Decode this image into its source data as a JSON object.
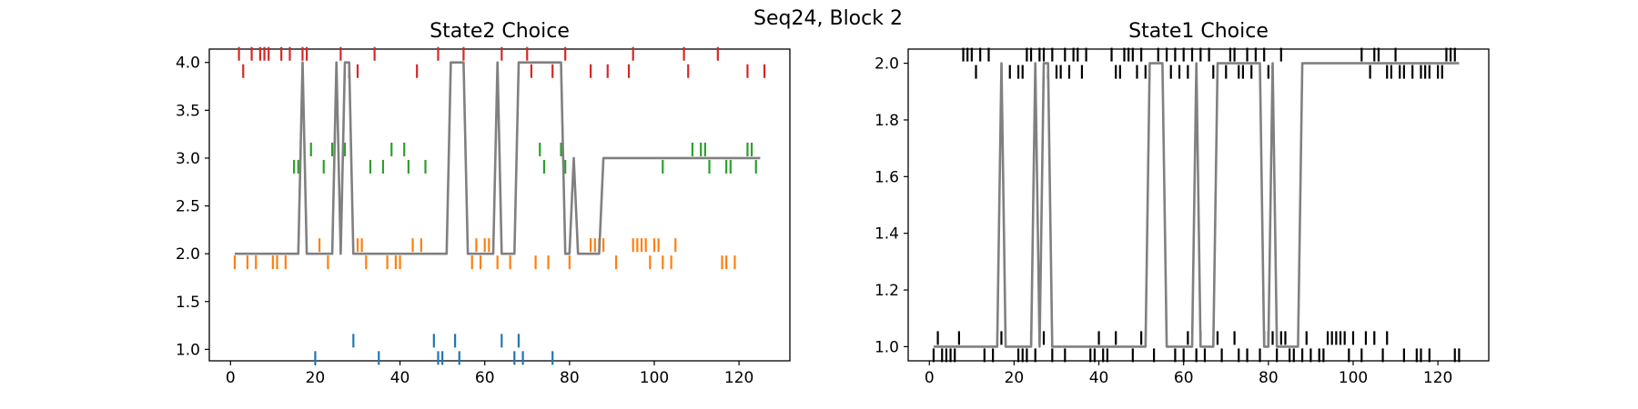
{
  "suptitle": "Seq24, Block 2",
  "chart_data": [
    {
      "type": "line",
      "title": "State2 Choice",
      "xlim": [
        -5,
        132
      ],
      "ylim": [
        0.88,
        4.14
      ],
      "xticks": [
        0,
        20,
        40,
        60,
        80,
        100,
        120
      ],
      "xtick_labels": [
        "0",
        "20",
        "40",
        "60",
        "80",
        "100",
        "120"
      ],
      "yticks": [
        1.0,
        1.5,
        2.0,
        2.5,
        3.0,
        3.5,
        4.0
      ],
      "ytick_labels": [
        "1.0",
        "1.5",
        "2.0",
        "2.5",
        "3.0",
        "3.5",
        "4.0"
      ],
      "grid": false,
      "line": {
        "color": "#808080",
        "x": [
          1,
          16,
          17,
          18,
          24,
          25,
          26,
          27,
          28,
          29,
          51,
          52,
          55,
          56,
          62,
          63,
          64,
          67,
          68,
          78,
          79,
          80,
          81,
          82,
          87,
          88,
          125
        ],
        "y": [
          2,
          2,
          4,
          2,
          2,
          4,
          2,
          4,
          4,
          2,
          2,
          4,
          4,
          2,
          2,
          4,
          2,
          2,
          4,
          4,
          2,
          2,
          3,
          2,
          2,
          3,
          3
        ]
      },
      "events": [
        {
          "level": 1,
          "color": "#1f77b4",
          "x": [
            20,
            29,
            35,
            48,
            49,
            50,
            53,
            54,
            64,
            67,
            68,
            69,
            76
          ],
          "up": [
            false,
            true,
            false,
            true,
            false,
            false,
            true,
            false,
            true,
            false,
            true,
            false,
            false
          ]
        },
        {
          "level": 2,
          "color": "#ff7f0e",
          "x": [
            1,
            4,
            6,
            10,
            11,
            13,
            21,
            23,
            30,
            31,
            32,
            37,
            39,
            40,
            43,
            45,
            57,
            58,
            59,
            60,
            61,
            63,
            66,
            72,
            75,
            80,
            85,
            86,
            87,
            88,
            91,
            95,
            96,
            97,
            98,
            99,
            100,
            101,
            102,
            104,
            105,
            116,
            117,
            119
          ],
          "up": [
            false,
            false,
            false,
            false,
            false,
            false,
            true,
            false,
            true,
            true,
            false,
            false,
            false,
            false,
            true,
            true,
            false,
            true,
            false,
            true,
            true,
            false,
            false,
            false,
            false,
            false,
            true,
            true,
            true,
            true,
            false,
            true,
            true,
            true,
            true,
            false,
            true,
            true,
            false,
            false,
            true,
            false,
            false,
            false
          ]
        },
        {
          "level": 3,
          "color": "#2ca02c",
          "x": [
            15,
            16,
            19,
            22,
            24,
            27,
            33,
            36,
            38,
            41,
            42,
            46,
            73,
            74,
            78,
            79,
            102,
            109,
            111,
            112,
            113,
            117,
            118,
            122,
            123,
            124
          ],
          "up": [
            false,
            false,
            true,
            false,
            true,
            true,
            false,
            false,
            true,
            true,
            false,
            false,
            true,
            false,
            true,
            false,
            false,
            true,
            true,
            true,
            false,
            false,
            false,
            true,
            true,
            false
          ]
        },
        {
          "level": 4,
          "color": "#d62728",
          "x": [
            2,
            3,
            5,
            7,
            8,
            9,
            12,
            14,
            17,
            18,
            25,
            26,
            28,
            30,
            34,
            44,
            49,
            55,
            64,
            70,
            71,
            76,
            79,
            85,
            89,
            94,
            95,
            107,
            108,
            115,
            122,
            126
          ],
          "up": [
            true,
            false,
            true,
            true,
            true,
            true,
            true,
            true,
            true,
            true,
            false,
            true,
            false,
            false,
            true,
            false,
            true,
            true,
            true,
            true,
            false,
            false,
            true,
            false,
            false,
            false,
            true,
            true,
            false,
            true,
            false,
            false
          ]
        }
      ]
    },
    {
      "type": "line",
      "title": "State1 Choice",
      "xlim": [
        -5,
        132
      ],
      "ylim": [
        0.95,
        2.05
      ],
      "xticks": [
        0,
        20,
        40,
        60,
        80,
        100,
        120
      ],
      "xtick_labels": [
        "0",
        "20",
        "40",
        "60",
        "80",
        "100",
        "120"
      ],
      "yticks": [
        1.0,
        1.2,
        1.4,
        1.6,
        1.8,
        2.0
      ],
      "ytick_labels": [
        "1.0",
        "1.2",
        "1.4",
        "1.6",
        "1.8",
        "2.0"
      ],
      "grid": false,
      "line": {
        "color": "#808080",
        "x": [
          1,
          16,
          17,
          18,
          24,
          25,
          26,
          27,
          28,
          29,
          51,
          52,
          55,
          56,
          62,
          63,
          64,
          67,
          68,
          78,
          79,
          80,
          81,
          82,
          87,
          88,
          125
        ],
        "y": [
          1,
          1,
          2,
          1,
          1,
          2,
          1,
          2,
          2,
          1,
          1,
          2,
          2,
          1,
          1,
          2,
          1,
          1,
          2,
          2,
          1,
          1,
          2,
          1,
          1,
          2,
          2
        ]
      },
      "events": [
        {
          "level": 1,
          "color": "#000000",
          "x": [
            1,
            2,
            3,
            4,
            5,
            6,
            7,
            13,
            15,
            17,
            21,
            22,
            23,
            24,
            25,
            27,
            29,
            32,
            38,
            39,
            40,
            41,
            42,
            44,
            48,
            50,
            53,
            58,
            60,
            61,
            63,
            64,
            65,
            68,
            69,
            72,
            73,
            75,
            78,
            79,
            80,
            81,
            82,
            83,
            84,
            85,
            86,
            88,
            89,
            90,
            92,
            93,
            94,
            95,
            96,
            97,
            98,
            99,
            100,
            102,
            103,
            105,
            107,
            108,
            112,
            115,
            116,
            118,
            124,
            125
          ],
          "up": [
            false,
            true,
            false,
            false,
            false,
            false,
            true,
            false,
            false,
            true,
            false,
            false,
            false,
            true,
            false,
            true,
            false,
            false,
            false,
            false,
            true,
            false,
            false,
            true,
            false,
            true,
            false,
            false,
            false,
            true,
            false,
            true,
            false,
            true,
            false,
            true,
            false,
            false,
            false,
            true,
            true,
            true,
            false,
            true,
            true,
            false,
            false,
            false,
            true,
            false,
            false,
            false,
            true,
            true,
            true,
            true,
            true,
            false,
            true,
            false,
            true,
            true,
            false,
            true,
            false,
            false,
            false,
            false,
            false,
            false
          ]
        },
        {
          "level": 2,
          "color": "#000000",
          "x": [
            8,
            9,
            10,
            11,
            12,
            14,
            19,
            21,
            22,
            23,
            24,
            25,
            26,
            27,
            28,
            29,
            30,
            31,
            32,
            33,
            34,
            35,
            36,
            37,
            43,
            44,
            45,
            46,
            47,
            48,
            49,
            50,
            51,
            54,
            56,
            57,
            58,
            59,
            60,
            61,
            62,
            63,
            64,
            66,
            67,
            70,
            71,
            72,
            73,
            74,
            75,
            76,
            77,
            79,
            80,
            81,
            83,
            102,
            104,
            105,
            106,
            108,
            109,
            110,
            111,
            112,
            114,
            116,
            117,
            118,
            120,
            121,
            122,
            123,
            124
          ],
          "up": [
            true,
            true,
            true,
            false,
            true,
            true,
            false,
            false,
            false,
            true,
            true,
            false,
            true,
            true,
            false,
            true,
            false,
            false,
            true,
            false,
            true,
            true,
            false,
            true,
            true,
            false,
            false,
            true,
            true,
            true,
            false,
            true,
            false,
            true,
            true,
            false,
            true,
            false,
            true,
            false,
            true,
            false,
            true,
            true,
            false,
            false,
            true,
            true,
            false,
            false,
            true,
            false,
            true,
            true,
            false,
            false,
            true,
            true,
            false,
            true,
            true,
            false,
            false,
            true,
            false,
            false,
            false,
            false,
            false,
            false,
            false,
            false,
            true,
            true,
            true
          ]
        }
      ]
    }
  ]
}
